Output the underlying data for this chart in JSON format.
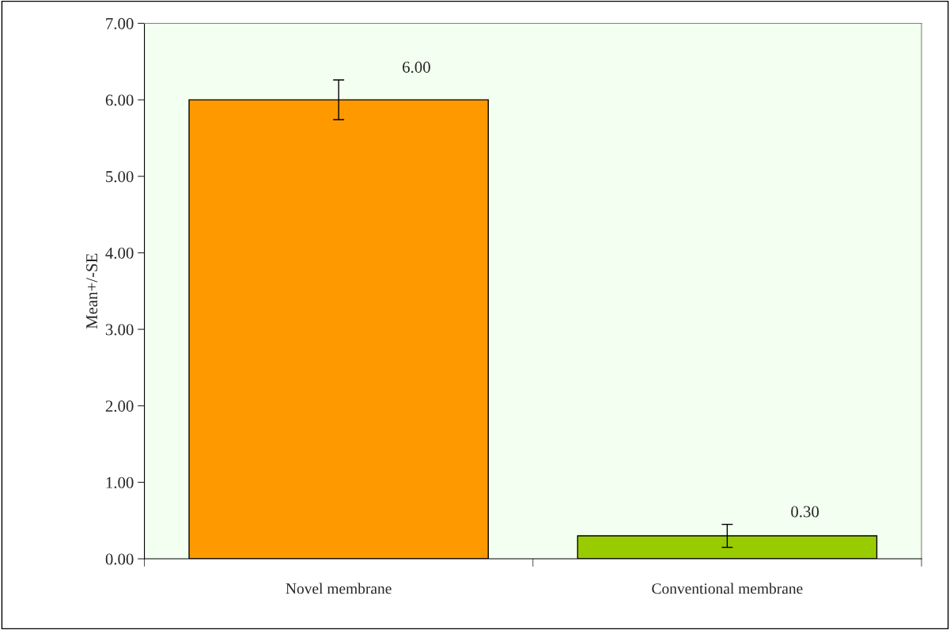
{
  "chart_data": {
    "type": "bar",
    "ylabel": "Mean+/-SE",
    "categories": [
      "Novel membrane",
      "Conventional membrane"
    ],
    "series": [
      {
        "values": [
          6.0,
          0.3
        ],
        "colors": [
          "#ff9900",
          "#99cc00"
        ],
        "errors": [
          0.26,
          0.15
        ],
        "value_labels": [
          "6.00",
          "0.30"
        ]
      }
    ],
    "ylim": [
      0,
      7
    ],
    "yticks": [
      {
        "value": 0,
        "label": "0.00"
      },
      {
        "value": 1,
        "label": "1.00"
      },
      {
        "value": 2,
        "label": "2.00"
      },
      {
        "value": 3,
        "label": "3.00"
      },
      {
        "value": 4,
        "label": "4.00"
      },
      {
        "value": 5,
        "label": "5.00"
      },
      {
        "value": 6,
        "label": "6.00"
      },
      {
        "value": 7,
        "label": "7.00"
      }
    ],
    "grid": false
  }
}
